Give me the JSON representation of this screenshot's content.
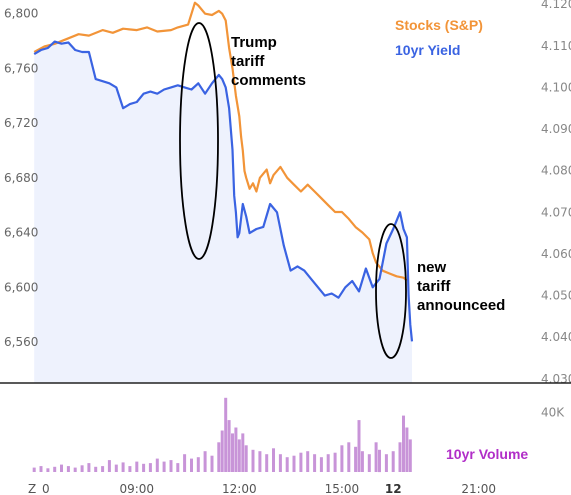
{
  "chart_data": {
    "type": "line",
    "left_axis": {
      "ticks": [
        6560,
        6600,
        6640,
        6680,
        6720,
        6760,
        6800
      ],
      "tick_labels": [
        "6,560",
        "6,600",
        "6,640",
        "6,680",
        "6,720",
        "6,760",
        "6,800"
      ],
      "ylim": [
        6530,
        6810
      ]
    },
    "right_axis": {
      "ticks": [
        4.03,
        4.04,
        4.05,
        4.06,
        4.07,
        4.08,
        4.09,
        4.1,
        4.11,
        4.12
      ],
      "tick_labels": [
        "4.030",
        "4.040",
        "4.050",
        "4.060",
        "4.070",
        "4.080",
        "4.090",
        "4.100",
        "4.110",
        "4.120"
      ],
      "ylim": [
        4.029,
        4.121
      ]
    },
    "x_axis": {
      "tick_labels": [
        {
          "label": "Z",
          "x": 5.0,
          "bold": false
        },
        {
          "label": "0",
          "x": 6.0,
          "bold": false
        },
        {
          "label": "09:00",
          "x": 9.0,
          "bold": false
        },
        {
          "label": "12:00",
          "x": 12.0,
          "bold": false
        },
        {
          "label": "15:00",
          "x": 15.0,
          "bold": false
        },
        {
          "label": "12",
          "x": 16.5,
          "bold": true
        },
        {
          "label": "21:00",
          "x": 19.0,
          "bold": false
        }
      ],
      "xlim": [
        5.0,
        21.7
      ]
    },
    "series": [
      {
        "name": "Stocks (S&P)",
        "axis": "left",
        "color": "#f29438",
        "points": [
          [
            6.0,
            6772
          ],
          [
            6.3,
            6776
          ],
          [
            6.6,
            6778
          ],
          [
            7.0,
            6782
          ],
          [
            7.3,
            6785
          ],
          [
            7.6,
            6784
          ],
          [
            8.0,
            6788
          ],
          [
            8.3,
            6786
          ],
          [
            8.6,
            6789
          ],
          [
            9.0,
            6788
          ],
          [
            9.3,
            6790
          ],
          [
            9.6,
            6787
          ],
          [
            10.0,
            6788
          ],
          [
            10.2,
            6790
          ],
          [
            10.5,
            6792
          ],
          [
            10.6,
            6800
          ],
          [
            10.7,
            6808
          ],
          [
            10.8,
            6806
          ],
          [
            11.0,
            6800
          ],
          [
            11.2,
            6799
          ],
          [
            11.4,
            6802
          ],
          [
            11.5,
            6800
          ],
          [
            11.6,
            6795
          ],
          [
            11.7,
            6775
          ],
          [
            11.8,
            6760
          ],
          [
            11.9,
            6740
          ],
          [
            12.0,
            6725
          ],
          [
            12.05,
            6710
          ],
          [
            12.1,
            6700
          ],
          [
            12.15,
            6685
          ],
          [
            12.2,
            6680
          ],
          [
            12.3,
            6672
          ],
          [
            12.4,
            6676
          ],
          [
            12.5,
            6670
          ],
          [
            12.6,
            6680
          ],
          [
            12.8,
            6686
          ],
          [
            12.9,
            6676
          ],
          [
            13.0,
            6682
          ],
          [
            13.2,
            6688
          ],
          [
            13.4,
            6680
          ],
          [
            13.6,
            6675
          ],
          [
            13.8,
            6670
          ],
          [
            14.0,
            6675
          ],
          [
            14.2,
            6670
          ],
          [
            14.4,
            6665
          ],
          [
            14.6,
            6660
          ],
          [
            14.8,
            6655
          ],
          [
            15.0,
            6655
          ],
          [
            15.2,
            6650
          ],
          [
            15.4,
            6644
          ],
          [
            15.6,
            6640
          ],
          [
            15.8,
            6635
          ],
          [
            15.9,
            6625
          ],
          [
            16.0,
            6618
          ],
          [
            16.2,
            6612
          ],
          [
            16.4,
            6610
          ],
          [
            16.6,
            6608
          ],
          [
            16.8,
            6607
          ],
          [
            16.9,
            6605
          ]
        ]
      },
      {
        "name": "10yr Yield",
        "axis": "right",
        "color": "#3a63e2",
        "points": [
          [
            6.0,
            4.108
          ],
          [
            6.2,
            4.109
          ],
          [
            6.4,
            4.1095
          ],
          [
            6.6,
            4.111
          ],
          [
            6.8,
            4.1105
          ],
          [
            7.0,
            4.1108
          ],
          [
            7.2,
            4.109
          ],
          [
            7.4,
            4.1085
          ],
          [
            7.6,
            4.1085
          ],
          [
            7.8,
            4.102
          ],
          [
            8.0,
            4.1015
          ],
          [
            8.2,
            4.101
          ],
          [
            8.4,
            4.1
          ],
          [
            8.6,
            4.095
          ],
          [
            8.8,
            4.096
          ],
          [
            9.0,
            4.0965
          ],
          [
            9.2,
            4.0985
          ],
          [
            9.4,
            4.099
          ],
          [
            9.6,
            4.0985
          ],
          [
            9.8,
            4.0995
          ],
          [
            10.0,
            4.1
          ],
          [
            10.2,
            4.1005
          ],
          [
            10.4,
            4.1
          ],
          [
            10.6,
            4.0995
          ],
          [
            10.8,
            4.101
          ],
          [
            11.0,
            4.0985
          ],
          [
            11.2,
            4.101
          ],
          [
            11.4,
            4.103
          ],
          [
            11.5,
            4.102
          ],
          [
            11.6,
            4.1
          ],
          [
            11.7,
            4.095
          ],
          [
            11.8,
            4.085
          ],
          [
            11.85,
            4.074
          ],
          [
            11.9,
            4.07
          ],
          [
            11.95,
            4.064
          ],
          [
            12.0,
            4.065
          ],
          [
            12.1,
            4.072
          ],
          [
            12.2,
            4.069
          ],
          [
            12.3,
            4.065
          ],
          [
            12.5,
            4.066
          ],
          [
            12.7,
            4.0665
          ],
          [
            12.9,
            4.072
          ],
          [
            13.1,
            4.07
          ],
          [
            13.3,
            4.062
          ],
          [
            13.5,
            4.056
          ],
          [
            13.7,
            4.057
          ],
          [
            13.9,
            4.056
          ],
          [
            14.1,
            4.054
          ],
          [
            14.3,
            4.052
          ],
          [
            14.5,
            4.05
          ],
          [
            14.7,
            4.0505
          ],
          [
            14.9,
            4.0495
          ],
          [
            15.1,
            4.052
          ],
          [
            15.3,
            4.0535
          ],
          [
            15.5,
            4.051
          ],
          [
            15.7,
            4.0565
          ],
          [
            15.9,
            4.052
          ],
          [
            16.1,
            4.054
          ],
          [
            16.3,
            4.0625
          ],
          [
            16.5,
            4.066
          ],
          [
            16.7,
            4.07
          ],
          [
            16.8,
            4.066
          ],
          [
            16.9,
            4.064
          ],
          [
            16.95,
            4.05
          ],
          [
            17.0,
            4.043
          ],
          [
            17.05,
            4.039
          ]
        ]
      },
      {
        "name": "10yr Volume",
        "axis": "volume",
        "color": "#c894d8",
        "volume_axis": {
          "tick_label": "40K",
          "tick_value": 40000,
          "ylim": [
            0,
            60000
          ]
        },
        "bars": [
          [
            6.0,
            3000
          ],
          [
            6.2,
            4000
          ],
          [
            6.4,
            2500
          ],
          [
            6.6,
            3500
          ],
          [
            6.8,
            5000
          ],
          [
            7.0,
            4000
          ],
          [
            7.2,
            3000
          ],
          [
            7.4,
            4500
          ],
          [
            7.6,
            6000
          ],
          [
            7.8,
            3500
          ],
          [
            8.0,
            4000
          ],
          [
            8.2,
            8000
          ],
          [
            8.4,
            5000
          ],
          [
            8.6,
            6500
          ],
          [
            8.8,
            4000
          ],
          [
            9.0,
            7000
          ],
          [
            9.2,
            5500
          ],
          [
            9.4,
            6000
          ],
          [
            9.6,
            9000
          ],
          [
            9.8,
            7000
          ],
          [
            10.0,
            8000
          ],
          [
            10.2,
            6000
          ],
          [
            10.4,
            12000
          ],
          [
            10.6,
            9000
          ],
          [
            10.8,
            10000
          ],
          [
            11.0,
            14000
          ],
          [
            11.2,
            11000
          ],
          [
            11.4,
            20000
          ],
          [
            11.5,
            28000
          ],
          [
            11.6,
            50000
          ],
          [
            11.7,
            35000
          ],
          [
            11.8,
            26000
          ],
          [
            11.9,
            30000
          ],
          [
            12.0,
            22000
          ],
          [
            12.1,
            26000
          ],
          [
            12.2,
            18000
          ],
          [
            12.4,
            15000
          ],
          [
            12.6,
            14000
          ],
          [
            12.8,
            12000
          ],
          [
            13.0,
            16000
          ],
          [
            13.2,
            12000
          ],
          [
            13.4,
            10000
          ],
          [
            13.6,
            11000
          ],
          [
            13.8,
            13000
          ],
          [
            14.0,
            14000
          ],
          [
            14.2,
            12000
          ],
          [
            14.4,
            10000
          ],
          [
            14.6,
            12000
          ],
          [
            14.8,
            13000
          ],
          [
            15.0,
            18000
          ],
          [
            15.2,
            20000
          ],
          [
            15.4,
            17000
          ],
          [
            15.5,
            35000
          ],
          [
            15.6,
            14000
          ],
          [
            15.8,
            12000
          ],
          [
            16.0,
            20000
          ],
          [
            16.1,
            15000
          ],
          [
            16.3,
            12000
          ],
          [
            16.5,
            14000
          ],
          [
            16.7,
            20000
          ],
          [
            16.8,
            38000
          ],
          [
            16.9,
            30000
          ],
          [
            17.0,
            22000
          ]
        ]
      }
    ],
    "legend": [
      {
        "label": "Stocks (S&P)",
        "color": "#f29438"
      },
      {
        "label": "10yr Yield",
        "color": "#3a63e2"
      }
    ],
    "volume_label": {
      "text": "10yr Volume",
      "color": "#b12ec8"
    },
    "annotations": [
      {
        "lines": [
          "Trump",
          "tariff",
          "comments"
        ]
      },
      {
        "lines": [
          "new",
          "tariff",
          "announceed"
        ]
      }
    ]
  }
}
